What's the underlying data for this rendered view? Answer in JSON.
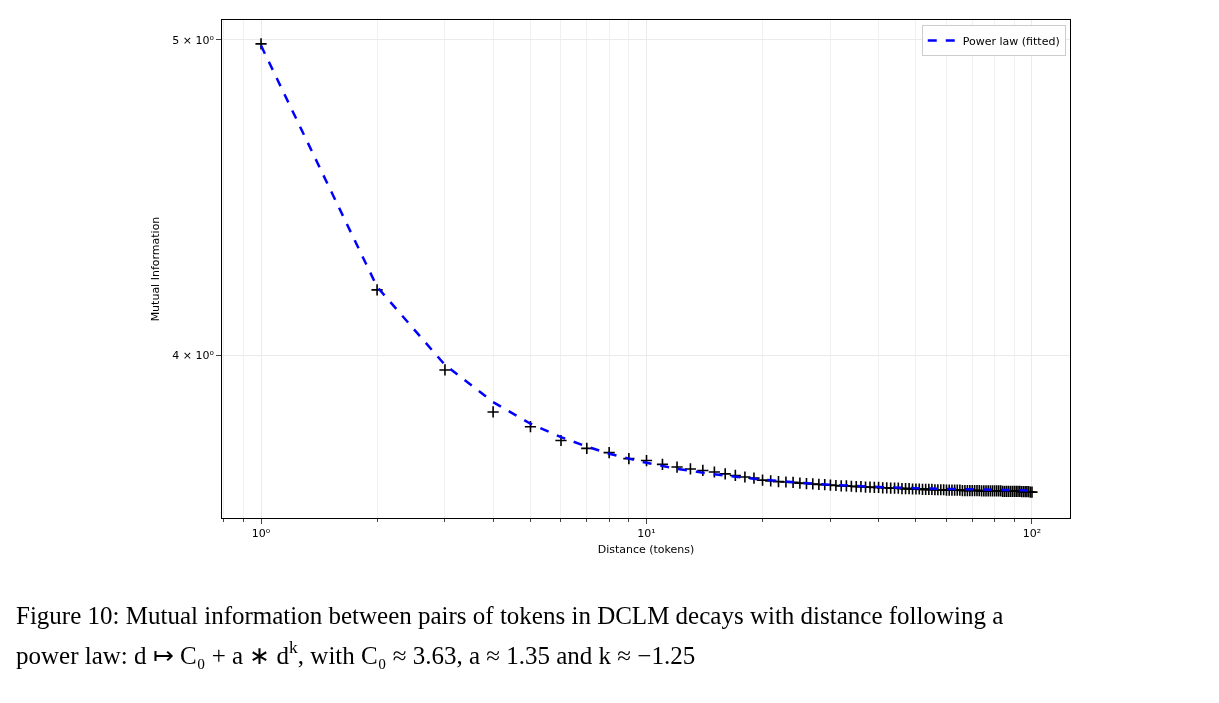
{
  "chart_data": {
    "type": "scatter",
    "xlabel": "Distance (tokens)",
    "ylabel": "Mutual Information",
    "log": "xy",
    "xlim": [
      0.792,
      125.5
    ],
    "ylim": [
      3.564,
      5.071
    ],
    "xticks": [
      {
        "value": 1,
        "label": "10⁰"
      },
      {
        "value": 10,
        "label": "10¹"
      },
      {
        "value": 100,
        "label": "10²"
      }
    ],
    "yticks": [
      {
        "value": 4,
        "label": "4 × 10⁰"
      },
      {
        "value": 5,
        "label": "5 × 10⁰"
      }
    ],
    "grid": true,
    "legend": "top right",
    "annotations": [
      "Figure 10: Mutual information between pairs of tokens in DCLM decays with distance following a",
      "power law: d ↦ C₀ + a ∗ d$^{k}$, with C₀ ≈ 3.63, a ≈ 1.35 and k ≈ −1.25"
    ],
    "series": [
      {
        "marker": "cross",
        "color": "#000000",
        "x": [
          1,
          2,
          3,
          4,
          5,
          6,
          7,
          8,
          9,
          10,
          11,
          12,
          13,
          14,
          15,
          16,
          17,
          18,
          19,
          20,
          21,
          22,
          23,
          24,
          25,
          26,
          27,
          28,
          29,
          30,
          31,
          32,
          33,
          34,
          35,
          36,
          37,
          38,
          39,
          40,
          41,
          42,
          43,
          44,
          45,
          46,
          47,
          48,
          49,
          50,
          51,
          52,
          53,
          54,
          55,
          56,
          57,
          58,
          59,
          60,
          61,
          62,
          63,
          64,
          65,
          66,
          67,
          68,
          69,
          70,
          71,
          72,
          73,
          74,
          75,
          76,
          77,
          78,
          79,
          80,
          81,
          82,
          83,
          84,
          85,
          86,
          87,
          88,
          89,
          90,
          91,
          92,
          93,
          94,
          95,
          96,
          97,
          98,
          99,
          100
        ],
        "values": [
          4.986,
          4.189,
          3.958,
          3.842,
          3.802,
          3.765,
          3.744,
          3.733,
          3.717,
          3.712,
          3.702,
          3.695,
          3.69,
          3.686,
          3.682,
          3.677,
          3.673,
          3.669,
          3.666,
          3.661,
          3.659,
          3.657,
          3.656,
          3.655,
          3.653,
          3.652,
          3.651,
          3.65,
          3.649,
          3.648,
          3.647,
          3.646,
          3.646,
          3.645,
          3.644,
          3.644,
          3.643,
          3.643,
          3.642,
          3.642,
          3.641,
          3.641,
          3.64,
          3.64,
          3.64,
          3.639,
          3.639,
          3.639,
          3.638,
          3.638,
          3.638,
          3.637,
          3.637,
          3.637,
          3.637,
          3.636,
          3.636,
          3.636,
          3.636,
          3.635,
          3.635,
          3.635,
          3.635,
          3.635,
          3.635,
          3.634,
          3.634,
          3.634,
          3.634,
          3.634,
          3.634,
          3.634,
          3.634,
          3.633,
          3.633,
          3.633,
          3.633,
          3.633,
          3.633,
          3.633,
          3.633,
          3.633,
          3.633,
          3.632,
          3.632,
          3.632,
          3.632,
          3.632,
          3.632,
          3.632,
          3.632,
          3.632,
          3.632,
          3.631,
          3.631,
          3.631,
          3.631,
          3.631,
          3.63,
          3.63
        ]
      },
      {
        "type": "line",
        "name": "Power law (fitted)",
        "color": "#0000ff",
        "line_style": "dashed",
        "marker": "none",
        "x": [
          1,
          2,
          3,
          4,
          5,
          6,
          7,
          8,
          9,
          10,
          12,
          15,
          20,
          25,
          30,
          40,
          50,
          60,
          70,
          80,
          90,
          100
        ],
        "values": [
          4.98,
          4.198,
          3.972,
          3.869,
          3.81,
          3.774,
          3.749,
          3.73,
          3.717,
          3.706,
          3.69,
          3.676,
          3.662,
          3.654,
          3.649,
          3.643,
          3.64,
          3.638,
          3.637,
          3.636,
          3.635,
          3.634
        ]
      }
    ]
  }
}
